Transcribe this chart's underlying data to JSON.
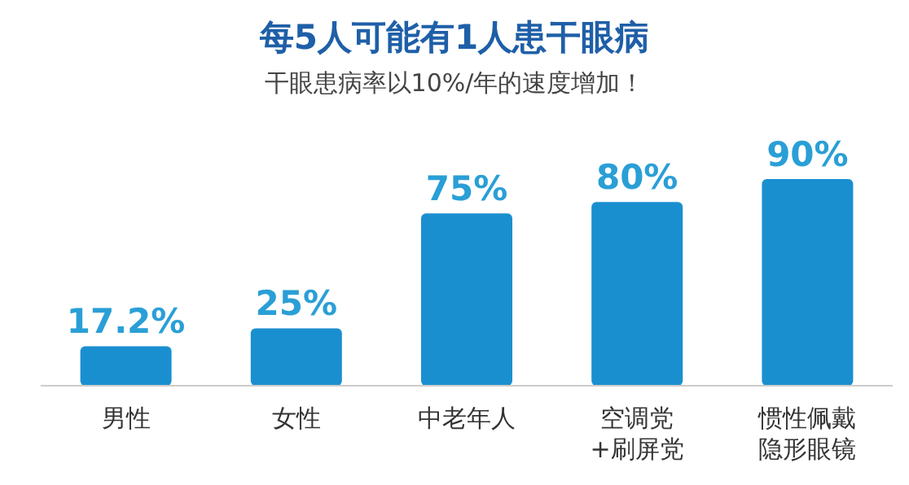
{
  "chart_data": {
    "type": "bar",
    "title": "每5人可能有1人患干眼病",
    "subtitle": "干眼患病率以10%/年的速度增加！",
    "categories": [
      "男性",
      "女性",
      "中老年人",
      "空调党\n+刷屏党",
      "惯性佩戴隐形眼镜"
    ],
    "values": [
      17.2,
      25,
      75,
      80,
      90
    ],
    "value_labels": [
      "17.2%",
      "25%",
      "75%",
      "80%",
      "90%"
    ],
    "color": "#1a8fd0"
  }
}
